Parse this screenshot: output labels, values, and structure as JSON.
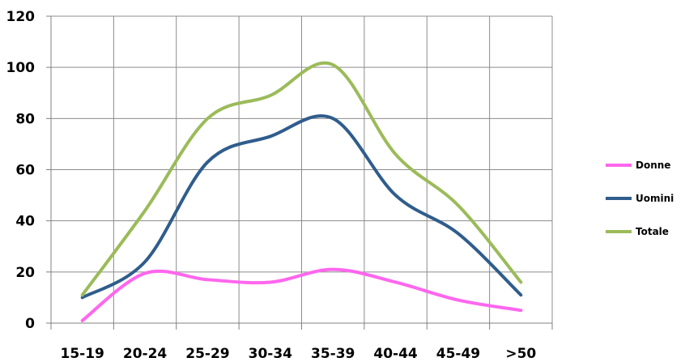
{
  "chart_data": {
    "type": "line",
    "categories": [
      "15-19",
      "20-24",
      "25-29",
      "30-34",
      "35-39",
      "40-44",
      "45-49",
      ">50"
    ],
    "series": [
      {
        "name": "Donne",
        "color": "#ff66ee",
        "values": [
          1,
          19.5,
          17,
          16,
          21,
          16,
          9,
          5
        ]
      },
      {
        "name": "Uomini",
        "color": "#2f5d8c",
        "values": [
          10,
          24,
          63,
          73,
          80,
          50,
          35,
          11
        ]
      },
      {
        "name": "Totale",
        "color": "#9bbb59",
        "values": [
          11,
          44,
          80,
          89,
          101,
          66,
          46,
          16
        ]
      }
    ],
    "ylim": [
      0,
      120
    ],
    "yticks": [
      0,
      20,
      40,
      60,
      80,
      100,
      120
    ],
    "grid": true,
    "legend_position": "right"
  }
}
